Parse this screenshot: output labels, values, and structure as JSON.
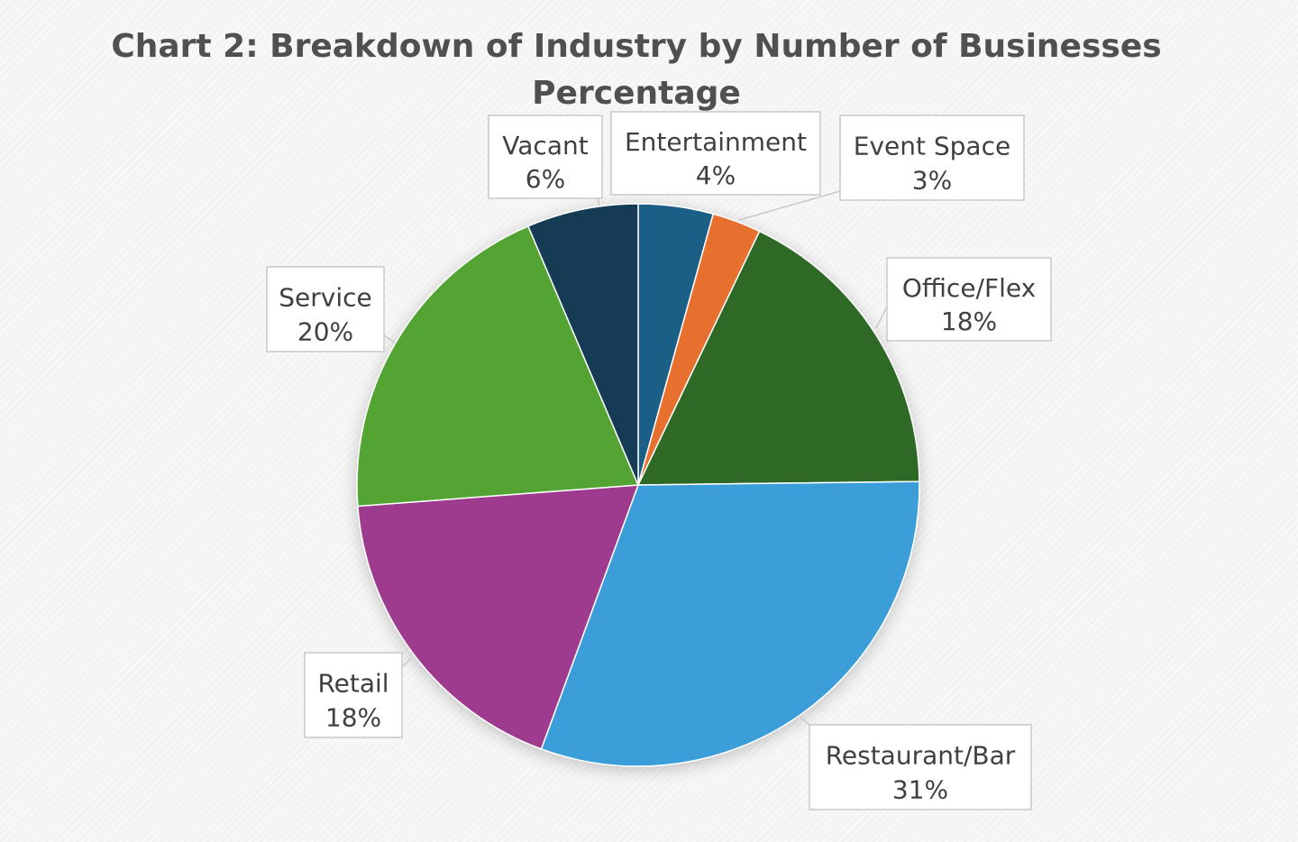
{
  "chart_data": {
    "type": "pie",
    "title": "Chart 2: Breakdown of Industry by Number of Businesses Percentage",
    "title_lines": [
      "Chart 2: Breakdown of Industry by Number of Businesses",
      "Percentage"
    ],
    "slices": [
      {
        "category": "Entertainment",
        "label": "4%",
        "value": 4.3,
        "color": "#1f5f86"
      },
      {
        "category": "Event Space",
        "label": "3%",
        "value": 2.8,
        "color": "#e8702f"
      },
      {
        "category": "Office/Flex",
        "label": "18%",
        "value": 17.7,
        "color": "#2f6b26"
      },
      {
        "category": "Restaurant/Bar",
        "label": "31%",
        "value": 30.8,
        "color": "#3a9ed8"
      },
      {
        "category": "Retail",
        "label": "18%",
        "value": 18.2,
        "color": "#9e3b8f"
      },
      {
        "category": "Service",
        "label": "20%",
        "value": 19.8,
        "color": "#53a431"
      },
      {
        "category": "Vacant",
        "label": "6%",
        "value": 6.4,
        "color": "#123a55"
      }
    ],
    "start_angle_deg": 0,
    "direction": "clockwise",
    "data_labels": "callouts",
    "legend": "none"
  }
}
